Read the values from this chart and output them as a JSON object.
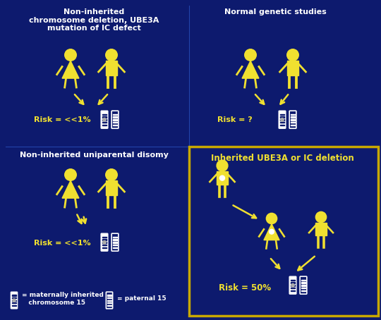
{
  "bg_color": "#0d1a6e",
  "fig_width": 5.4,
  "fig_height": 4.54,
  "dpi": 100,
  "yellow": "#f0e030",
  "white": "#ffffff",
  "box_color": "#c8a800",
  "panels": {
    "top_left": {
      "title": "Non-inherited\nchromosome deletion, UBE3A\nmutation of IC defect",
      "risk": "Risk = <<1%"
    },
    "top_right": {
      "title": "Normal genetic studies",
      "risk": "Risk = ?"
    },
    "bottom_left": {
      "title": "Non-inherited uniparental disomy",
      "risk": "Risk = <<1%"
    },
    "bottom_right": {
      "title": "Inherited UBE3A or IC deletion",
      "risk": "Risk = 50%"
    }
  },
  "legend_left": "= maternally inherited\n   chromosome 15",
  "legend_right": "= paternal 15"
}
